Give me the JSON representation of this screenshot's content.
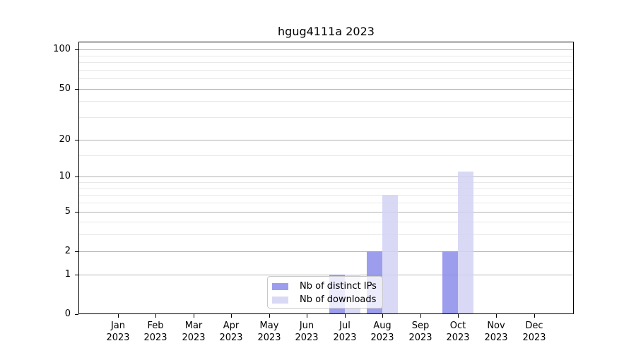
{
  "chart_data": {
    "type": "bar",
    "title": "hgug4111a 2023",
    "categories": [
      "Jan",
      "Feb",
      "Mar",
      "Apr",
      "May",
      "Jun",
      "Jul",
      "Aug",
      "Sep",
      "Oct",
      "Nov",
      "Dec"
    ],
    "category_year": "2023",
    "series": [
      {
        "name": "Nb of distinct IPs",
        "color": "#9d9dee",
        "bar_rgba": "rgba(140,140,235,0.85)",
        "values": [
          0,
          0,
          0,
          0,
          0,
          0,
          1,
          2,
          0,
          2,
          0,
          0
        ]
      },
      {
        "name": "Nb of downloads",
        "color": "#d9d9f6",
        "bar_rgba": "rgba(210,210,244,0.85)",
        "values": [
          0,
          0,
          0,
          0,
          0,
          0,
          1,
          7,
          0,
          11,
          0,
          0
        ]
      }
    ],
    "xlabel": "",
    "ylabel": "",
    "yscale": "log1p",
    "ylim": [
      0,
      114
    ],
    "yticks": [
      0,
      1,
      2,
      5,
      10,
      20,
      50,
      100
    ],
    "yticks_minor": [
      3,
      4,
      6,
      7,
      8,
      9,
      15,
      30,
      40,
      60,
      70,
      80,
      90
    ],
    "grid": "horizontal",
    "legend_position": "bottom-center",
    "colors": {
      "major_grid": "#b3b3b3",
      "minor_grid": "#e8e8e8",
      "spine": "#000000",
      "background": "#ffffff"
    }
  }
}
